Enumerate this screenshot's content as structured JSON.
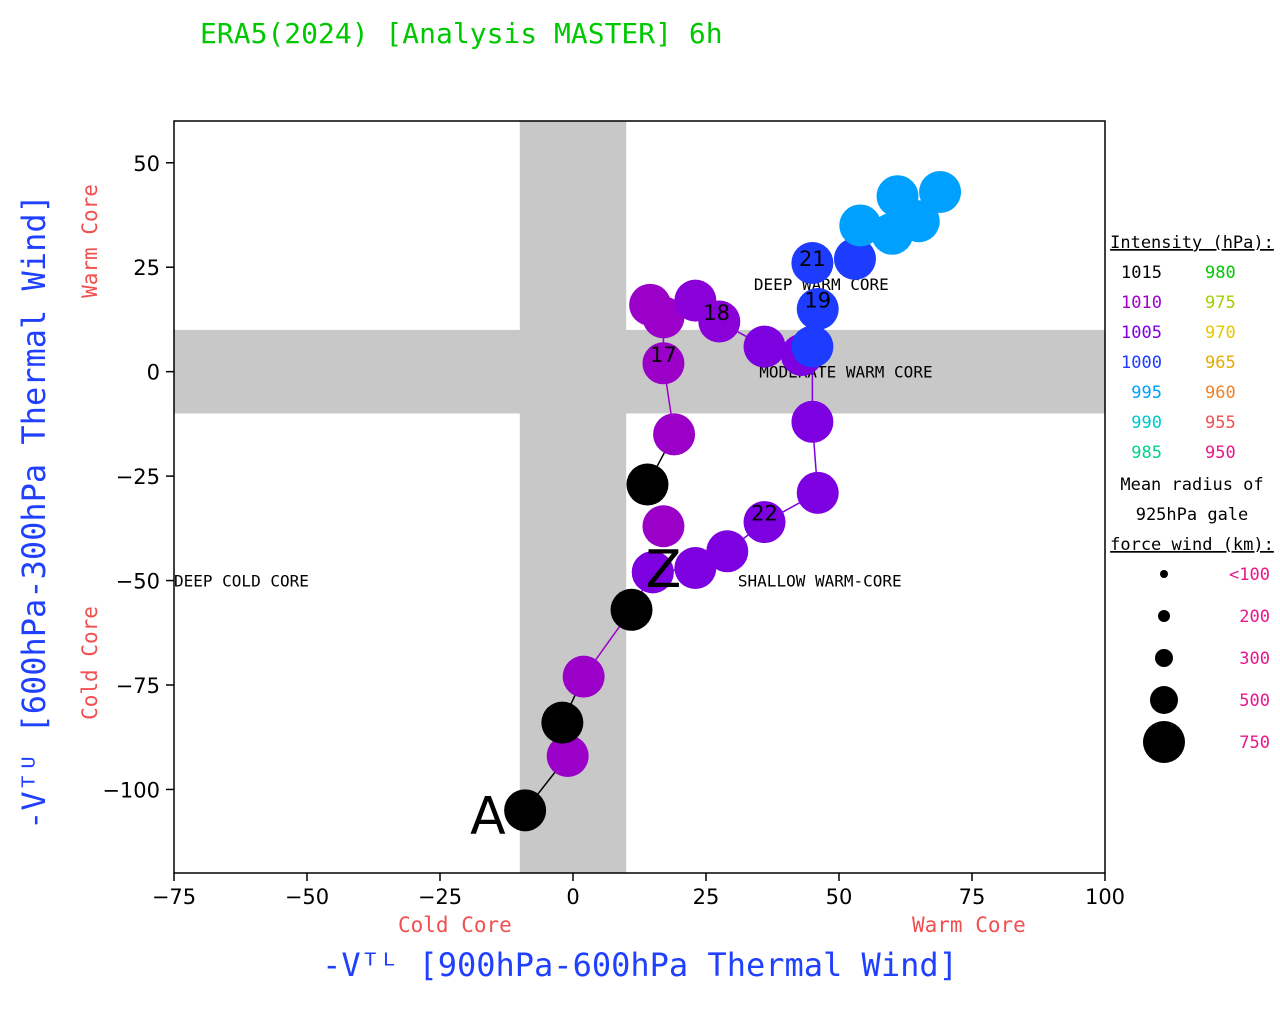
{
  "chart_data": {
    "type": "scatter",
    "title": "ERA5(2024) [Analysis MASTER] 6h",
    "xlabel": "-Vᵀᴸ [900hPa-600hPa Thermal Wind]",
    "ylabel": "-Vᵀᵁ [600hPa-300hPa Thermal Wind]",
    "xlim": [
      -75,
      100
    ],
    "ylim": [
      -120,
      60
    ],
    "xticks": [
      -75,
      -50,
      -25,
      0,
      25,
      50,
      75,
      100
    ],
    "xtick_labels": [
      "−75",
      "−50",
      "−25",
      "0",
      "25",
      "50",
      "75",
      "100"
    ],
    "yticks": [
      50,
      25,
      0,
      -25,
      -50,
      -75,
      -100
    ],
    "ytick_labels": [
      "50",
      "25",
      "0",
      "−25",
      "−50",
      "−75",
      "−100"
    ],
    "x_side_labels": {
      "left": "Cold Core",
      "right": "Warm Core"
    },
    "y_side_labels": {
      "bottom": "Cold Core",
      "top": "Warm Core"
    },
    "shaded_bands": {
      "vertical_x": [
        -10,
        10
      ],
      "horizontal_y": [
        -10,
        10
      ]
    },
    "quadrant_labels": [
      {
        "text": "DEEP WARM CORE",
        "x": 34,
        "y": 21
      },
      {
        "text": "MODERATE WARM CORE",
        "x": 35,
        "y": 0
      },
      {
        "text": "DEEP COLD CORE",
        "x": -75,
        "y": -50
      },
      {
        "text": "SHALLOW WARM-CORE",
        "x": 31,
        "y": -50
      }
    ],
    "track_points": [
      {
        "x": -9,
        "y": -105,
        "color": "#000000"
      },
      {
        "x": -1,
        "y": -92,
        "color": "#9a00c8"
      },
      {
        "x": -2,
        "y": -84,
        "color": "#000000"
      },
      {
        "x": 2,
        "y": -73,
        "color": "#9a00c8"
      },
      {
        "x": 11,
        "y": -57,
        "color": "#000000"
      },
      {
        "x": 15,
        "y": -48,
        "color": "#7c00e0"
      },
      {
        "x": 17,
        "y": -37,
        "color": "#9a00c8"
      },
      {
        "x": 14,
        "y": -27,
        "color": "#000000"
      },
      {
        "x": 19,
        "y": -15,
        "color": "#9a00c8"
      },
      {
        "x": 17,
        "y": 2,
        "color": "#9a00c8"
      },
      {
        "x": 17,
        "y": 13,
        "color": "#9a00c8"
      },
      {
        "x": 14.5,
        "y": 16,
        "color": "#9a00c8"
      },
      {
        "x": 23,
        "y": 17,
        "color": "#8a00d8"
      },
      {
        "x": 27.5,
        "y": 12,
        "color": "#8a00d8"
      },
      {
        "x": 36,
        "y": 6,
        "color": "#7c00e0"
      },
      {
        "x": 43,
        "y": 4,
        "color": "#7c00e0"
      },
      {
        "x": 45,
        "y": 6,
        "color": "#1e3cff"
      },
      {
        "x": 46,
        "y": 15,
        "color": "#1e3cff"
      },
      {
        "x": 45,
        "y": 26,
        "color": "#1e3cff"
      },
      {
        "x": 53,
        "y": 27,
        "color": "#1e3cff"
      },
      {
        "x": 54,
        "y": 35,
        "color": "#00a0ff"
      },
      {
        "x": 60,
        "y": 33,
        "color": "#00a0ff"
      },
      {
        "x": 61,
        "y": 42,
        "color": "#00a0ff"
      },
      {
        "x": 65,
        "y": 36,
        "color": "#00a0ff"
      },
      {
        "x": 69,
        "y": 43,
        "color": "#00a0ff"
      },
      {
        "x": 45,
        "y": -12,
        "color": "#7c00e0"
      },
      {
        "x": 46,
        "y": -29,
        "color": "#7c00e0"
      },
      {
        "x": 36,
        "y": -36,
        "color": "#7c00e0"
      },
      {
        "x": 29,
        "y": -43,
        "color": "#7c00e0"
      },
      {
        "x": 23,
        "y": -47,
        "color": "#7c00e0"
      },
      {
        "x": 15,
        "y": -48,
        "color": "#7c00e0"
      }
    ],
    "track_lines": [
      {
        "from": 0,
        "to": 1,
        "color": "#000000"
      },
      {
        "from": 1,
        "to": 2,
        "color": "#9a00c8"
      },
      {
        "from": 2,
        "to": 3,
        "color": "#000000"
      },
      {
        "from": 3,
        "to": 4,
        "color": "#9a00c8"
      },
      {
        "from": 4,
        "to": 5,
        "color": "#7c00e0"
      },
      {
        "from": 7,
        "to": 8,
        "color": "#000000"
      },
      {
        "from": 8,
        "to": 9,
        "color": "#9a00c8"
      },
      {
        "from": 9,
        "to": 10,
        "color": "#9a00c8"
      },
      {
        "from": 10,
        "to": 11,
        "color": "#9a00c8"
      },
      {
        "from": 12,
        "to": 13,
        "color": "#8a00d8"
      },
      {
        "from": 13,
        "to": 14,
        "color": "#8a00d8"
      },
      {
        "from": 14,
        "to": 15,
        "color": "#7c00e0"
      },
      {
        "from": 15,
        "to": 16,
        "color": "#7c00e0"
      },
      {
        "from": 16,
        "to": 25,
        "color": "#7c00e0"
      },
      {
        "from": 25,
        "to": 26,
        "color": "#7c00e0"
      },
      {
        "from": 26,
        "to": 27,
        "color": "#7c00e0"
      },
      {
        "from": 27,
        "to": 28,
        "color": "#7c00e0"
      },
      {
        "from": 28,
        "to": 29,
        "color": "#7c00e0"
      },
      {
        "from": 29,
        "to": 30,
        "color": "#7c00e0"
      }
    ],
    "point_labels": [
      {
        "text": "A",
        "x": -16,
        "y": -107,
        "size": "large"
      },
      {
        "text": "Z",
        "x": 17,
        "y": -48,
        "size": "large"
      },
      {
        "text": "17",
        "x": 17,
        "y": 4,
        "size": "small"
      },
      {
        "text": "18",
        "x": 27,
        "y": 14,
        "size": "small"
      },
      {
        "text": "19",
        "x": 46,
        "y": 17,
        "size": "small"
      },
      {
        "text": "21",
        "x": 45,
        "y": 27,
        "size": "small"
      },
      {
        "text": "22",
        "x": 36,
        "y": -34,
        "size": "small"
      }
    ],
    "legend": {
      "intensity_title": "Intensity (hPa):",
      "intensity_pairs": [
        {
          "a": "1015",
          "a_color": "#000000",
          "b": "980",
          "b_color": "#00c800"
        },
        {
          "a": "1010",
          "a_color": "#a000c8",
          "b": "975",
          "b_color": "#a0d000"
        },
        {
          "a": "1005",
          "a_color": "#8000e0",
          "b": "970",
          "b_color": "#e6c800"
        },
        {
          "a": "1000",
          "a_color": "#1e3cff",
          "b": "965",
          "b_color": "#e6aa00"
        },
        {
          "a": "995",
          "a_color": "#00a0ff",
          "b": "960",
          "b_color": "#f08228"
        },
        {
          "a": "990",
          "a_color": "#00c8c8",
          "b": "955",
          "b_color": "#f05050"
        },
        {
          "a": "985",
          "a_color": "#00d28c",
          "b": "950",
          "b_color": "#e6198c"
        }
      ],
      "radius_title_lines": [
        "Mean radius of",
        "925hPa gale",
        "force wind (km):"
      ],
      "radius_entries": [
        {
          "label": "<100",
          "r": 4
        },
        {
          "label": "200",
          "r": 6
        },
        {
          "label": "300",
          "r": 9
        },
        {
          "label": "500",
          "r": 14
        },
        {
          "label": "750",
          "r": 21
        }
      ]
    }
  }
}
